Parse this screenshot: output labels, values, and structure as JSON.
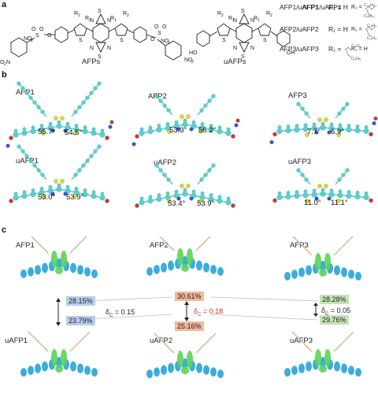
{
  "panels": {
    "a": "a",
    "b": "b",
    "c": "c"
  },
  "panel_a": {
    "label_afps": "AFPs",
    "label_uafps": "uAFPs",
    "structure_marks": {
      "r1": "R",
      "r1_sub": "1",
      "r2": "R",
      "r2_sub": "2",
      "s": "S",
      "n": "N",
      "o": "O",
      "no2": "NO",
      "no2_sub": "2",
      "o2n": "O",
      "o2n_sub": "2",
      "o2n_tail": "N",
      "ho": "HO",
      "oh": "OH"
    },
    "legend": [
      {
        "pair": "AFP1/uAFP1",
        "r1": "R₁ = H",
        "r2": "R₂ =",
        "chain_top": "C₁₀H₂₁",
        "chain_bottom": "C₈H₁₇"
      },
      {
        "pair": "AFP2/uAFP2",
        "r1": "R₁ = H",
        "r2": "R₂ =",
        "chain_top": "C₄H₉",
        "chain_bottom": "C₂H₅"
      },
      {
        "pair": "AFP3/uAFP3",
        "r1": "R₁ =",
        "r2": "R₂ = H",
        "chain_top": "C₄H₉",
        "chain_bottom": "C₂H₅"
      }
    ]
  },
  "panel_b": {
    "molecules": [
      {
        "name": "AFP1",
        "angle_left": "55.7°",
        "angle_right": "54.5°"
      },
      {
        "name": "AFP2",
        "angle_left": "53.3°",
        "angle_right": "56.2°"
      },
      {
        "name": "AFP3",
        "angle_left": "7.7°",
        "angle_right": "6.9°"
      },
      {
        "name": "uAFP1",
        "angle_left": "53.0°",
        "angle_right": "53.9°"
      },
      {
        "name": "uAFP2",
        "angle_left": "53.4°",
        "angle_right": "53.9°"
      },
      {
        "name": "uAFP3",
        "angle_left": "11.0°",
        "angle_right": "11.1°"
      }
    ]
  },
  "panel_c": {
    "top": [
      "AFP1",
      "AFP2",
      "AFP3"
    ],
    "bottom": [
      "uAFP1",
      "uAFP2",
      "uAFP3"
    ],
    "pairs": [
      {
        "upper": "28.15%",
        "lower": "23.79%",
        "delta_symbol": "δ",
        "delta_sub": "C",
        "delta_value": " = 0.15",
        "color": "blue"
      },
      {
        "upper": "30.61%",
        "lower": "25.16%",
        "delta_symbol": "δ",
        "delta_sub": "C",
        "delta_value": " = 0.18",
        "color": "orange"
      },
      {
        "upper": "28.28%",
        "lower": "29.76%",
        "delta_symbol": "δ",
        "delta_sub": "C",
        "delta_value": " = 0.05",
        "color": "green"
      }
    ],
    "colors": {
      "blue": "#b8cdea",
      "orange": "#f3b7a0",
      "green": "#c6e3b5",
      "highlight_text": "#d9332b",
      "isosurface_cyan": "#2aa6d8",
      "isosurface_green": "#5fd45a",
      "atom_carbon": "#4fd3d3",
      "atom_sulfur": "#e6d71e",
      "atom_nitrogen": "#3a4fd8",
      "atom_oxygen": "#d8352b"
    }
  }
}
